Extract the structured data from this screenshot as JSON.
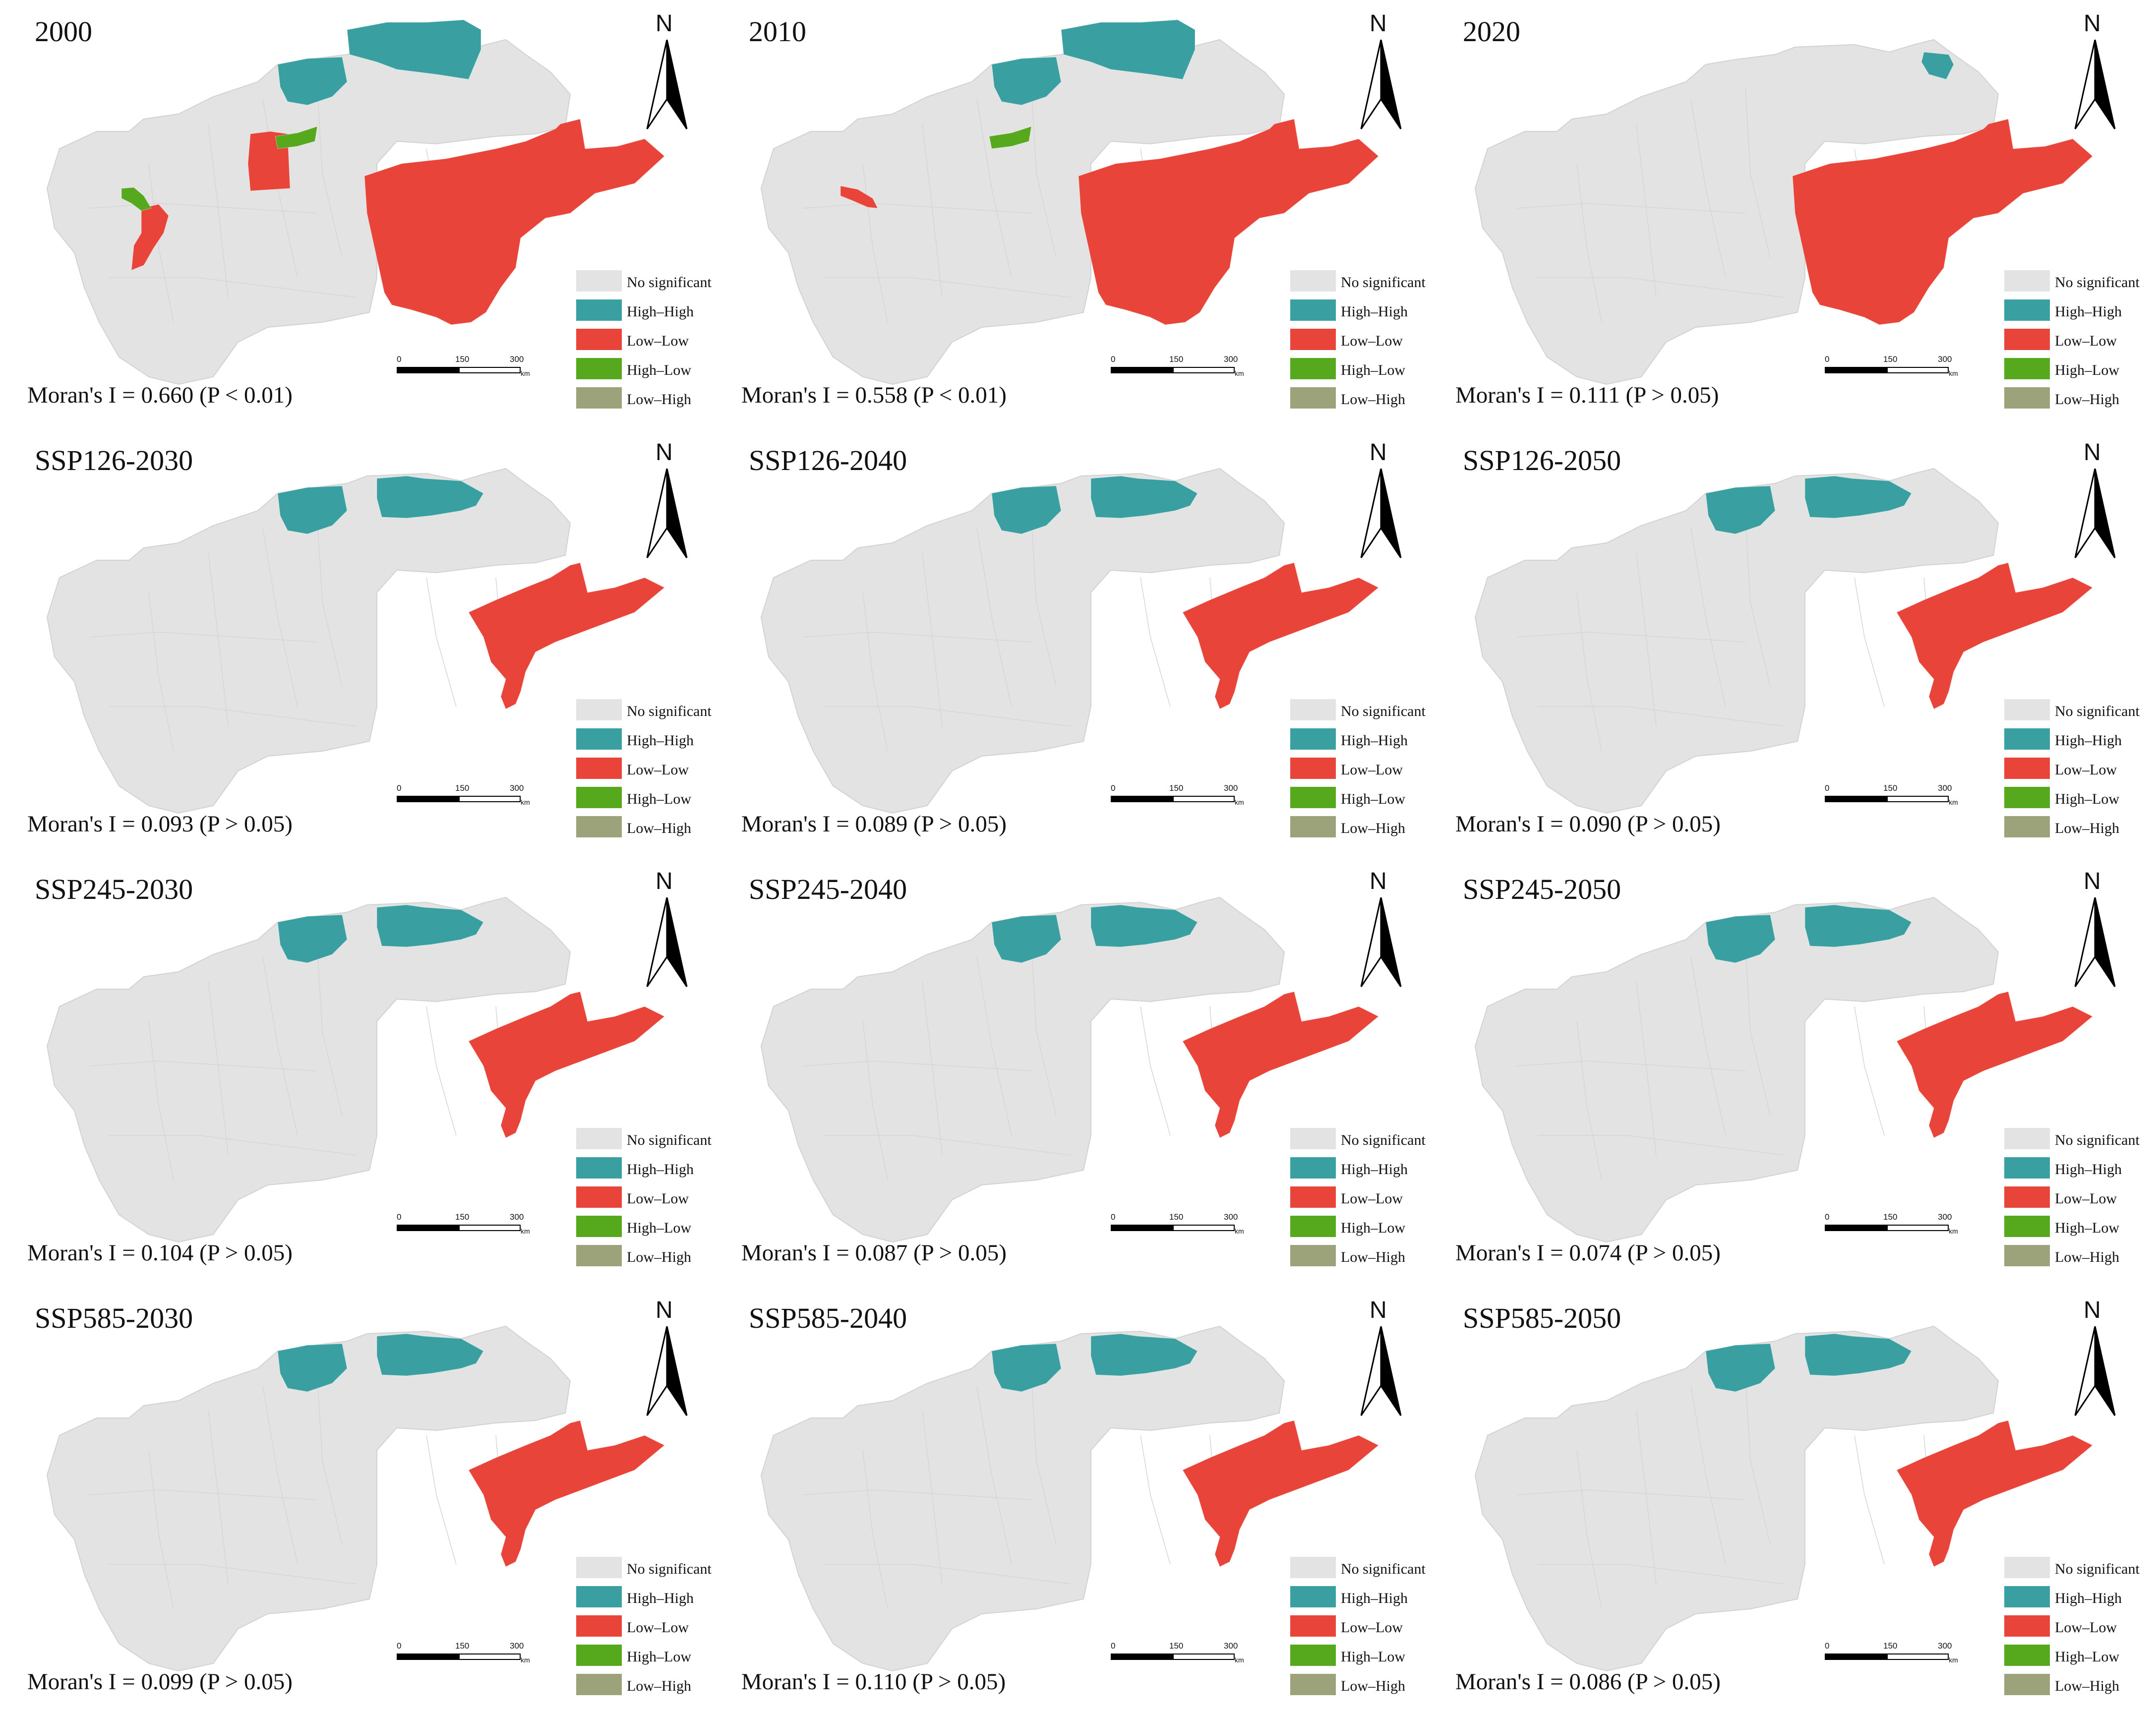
{
  "colors": {
    "no_significant": "#e3e3e3",
    "high_high": "#3a9fa0",
    "low_low": "#e8443a",
    "high_low": "#56a81c",
    "low_high": "#9ca27a",
    "boundary": "#d2d2d2"
  },
  "legend": [
    {
      "label": "No significant",
      "color_key": "no_significant"
    },
    {
      "label": "High–High",
      "color_key": "high_high"
    },
    {
      "label": "Low–Low",
      "color_key": "low_low"
    },
    {
      "label": "High–Low",
      "color_key": "high_low"
    },
    {
      "label": "Low–High",
      "color_key": "low_high"
    }
  ],
  "north_label": "N",
  "scale": {
    "ticks": [
      "0",
      "150",
      "300"
    ],
    "unit": "km"
  },
  "panels": [
    {
      "title": "2000",
      "stat": "Moran's I = 0.660 (P < 0.01)",
      "clusters": {
        "high_high": [
          "north_w",
          "north_e"
        ],
        "low_low": [
          "east_large",
          "center_small",
          "west_small"
        ],
        "high_low": [
          "center_green",
          "west_green"
        ]
      }
    },
    {
      "title": "2010",
      "stat": "Moran's I = 0.558 (P < 0.01)",
      "clusters": {
        "high_high": [
          "north_w",
          "north_e"
        ],
        "low_low": [
          "east_large",
          "west_tiny"
        ],
        "high_low": [
          "center_green"
        ]
      }
    },
    {
      "title": "2020",
      "stat": "Moran's I = 0.111 (P > 0.05)",
      "clusters": {
        "high_high": [
          "north_tiny"
        ],
        "low_low": [
          "east_large"
        ],
        "high_low": []
      }
    },
    {
      "title": "SSP126-2030",
      "stat": "Moran's I = 0.093 (P > 0.05)",
      "clusters": {
        "high_high": [
          "north_w",
          "north_c"
        ],
        "low_low": [
          "east_narrow"
        ],
        "high_low": []
      }
    },
    {
      "title": "SSP126-2040",
      "stat": "Moran's I = 0.089 (P > 0.05)",
      "clusters": {
        "high_high": [
          "north_w",
          "north_c"
        ],
        "low_low": [
          "east_narrow"
        ],
        "high_low": []
      }
    },
    {
      "title": "SSP126-2050",
      "stat": "Moran's I = 0.090 (P > 0.05)",
      "clusters": {
        "high_high": [
          "north_w",
          "north_c"
        ],
        "low_low": [
          "east_narrow"
        ],
        "high_low": []
      }
    },
    {
      "title": "SSP245-2030",
      "stat": "Moran's I = 0.104 (P > 0.05)",
      "clusters": {
        "high_high": [
          "north_w",
          "north_c"
        ],
        "low_low": [
          "east_narrow"
        ],
        "high_low": []
      }
    },
    {
      "title": "SSP245-2040",
      "stat": "Moran's I = 0.087 (P > 0.05)",
      "clusters": {
        "high_high": [
          "north_w",
          "north_c"
        ],
        "low_low": [
          "east_narrow"
        ],
        "high_low": []
      }
    },
    {
      "title": "SSP245-2050",
      "stat": "Moran's I = 0.074 (P > 0.05)",
      "clusters": {
        "high_high": [
          "north_w",
          "north_c"
        ],
        "low_low": [
          "east_narrow"
        ],
        "high_low": []
      }
    },
    {
      "title": "SSP585-2030",
      "stat": "Moran's I = 0.099 (P > 0.05)",
      "clusters": {
        "high_high": [
          "north_w",
          "north_c"
        ],
        "low_low": [
          "east_narrow"
        ],
        "high_low": []
      }
    },
    {
      "title": "SSP585-2040",
      "stat": "Moran's I = 0.110 (P > 0.05)",
      "clusters": {
        "high_high": [
          "north_w",
          "north_c"
        ],
        "low_low": [
          "east_narrow"
        ],
        "high_low": []
      }
    },
    {
      "title": "SSP585-2050",
      "stat": "Moran's I = 0.086 (P > 0.05)",
      "clusters": {
        "high_high": [
          "north_w",
          "north_c"
        ],
        "low_low": [
          "east_narrow"
        ],
        "high_low": []
      }
    }
  ]
}
